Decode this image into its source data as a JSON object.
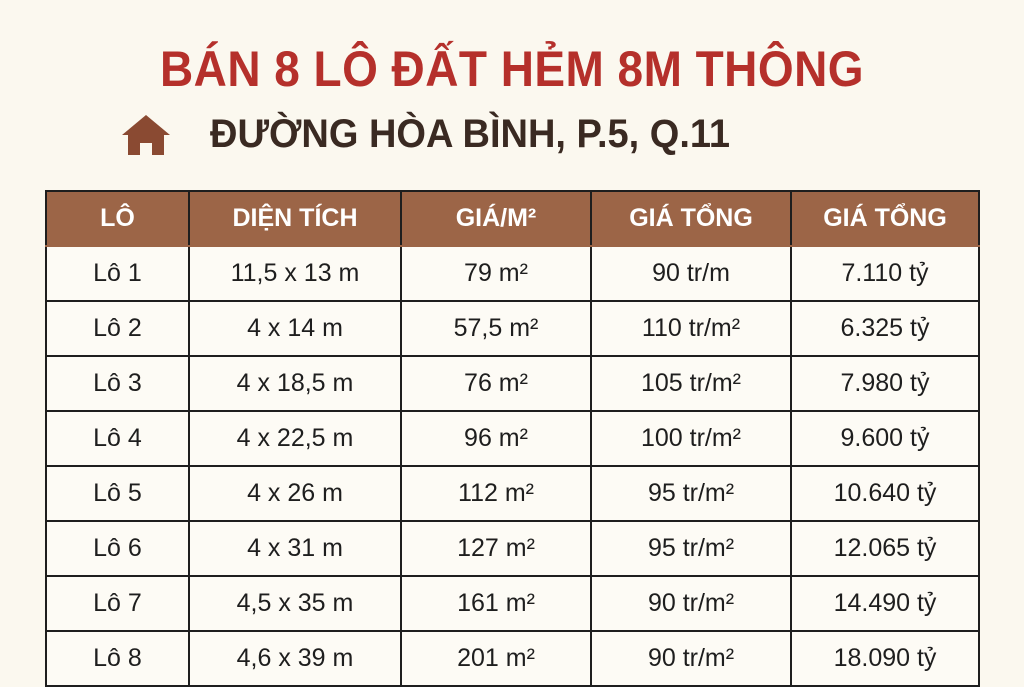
{
  "title": "BÁN 8 LÔ ĐẤT HẺM 8M THÔNG",
  "subtitle": "ĐƯỜNG HÒA BÌNH, P.5, Q.11",
  "icon": "house-icon",
  "colors": {
    "title": "#b5302b",
    "header_bg": "#9c6547",
    "icon": "#8a4a32"
  },
  "table": {
    "headers": [
      "LÔ",
      "DIỆN TÍCH",
      "GIÁ/M²",
      "GIÁ TỔNG",
      "GIÁ TỔNG"
    ],
    "rows": [
      [
        "Lô 1",
        "11,5 x 13 m",
        "79 m²",
        "90 tr/m",
        "7.110 tỷ"
      ],
      [
        "Lô 2",
        "4 x 14 m",
        "57,5 m²",
        "110 tr/m²",
        "6.325 tỷ"
      ],
      [
        "Lô 3",
        "4 x 18,5 m",
        "76 m²",
        "105 tr/m²",
        "7.980 tỷ"
      ],
      [
        "Lô 4",
        "4 x 22,5 m",
        "96 m²",
        "100 tr/m²",
        "9.600 tỷ"
      ],
      [
        "Lô 5",
        "4 x 26 m",
        "112 m²",
        "95 tr/m²",
        "10.640 tỷ"
      ],
      [
        "Lô 6",
        "4 x 31 m",
        "127 m²",
        "95 tr/m²",
        "12.065 tỷ"
      ],
      [
        "Lô 7",
        "4,5 x 35 m",
        "161 m²",
        "90 tr/m²",
        "14.490 tỷ"
      ],
      [
        "Lô 8",
        "4,6 x 39 m",
        "201 m²",
        "90 tr/m²",
        "18.090 tỷ"
      ]
    ]
  }
}
